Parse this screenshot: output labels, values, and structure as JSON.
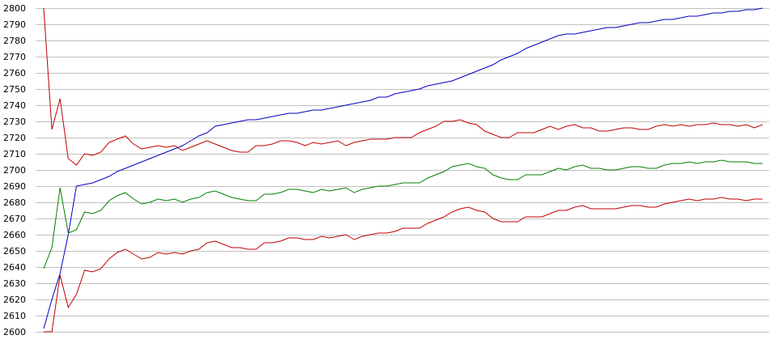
{
  "chart_data": {
    "type": "line",
    "title": "",
    "xlabel": "",
    "ylabel": "",
    "grid": true,
    "legend": "none",
    "xlim": [
      0,
      88
    ],
    "ylim": [
      2600,
      2800
    ],
    "yticks": [
      "2800",
      "2790",
      "2780",
      "2770",
      "2760",
      "2750",
      "2740",
      "2730",
      "2720",
      "2710",
      "2700",
      "2690",
      "2680",
      "2670",
      "2660",
      "2650",
      "2640",
      "2630",
      "2620",
      "2610",
      "2600"
    ],
    "colors": {
      "grid": "#c0c0c0",
      "blue": "#0000c0",
      "upper_red": "#c00000",
      "green": "#008000",
      "lower_red": "#c00000"
    },
    "series": [
      {
        "color": "#0000c0",
        "values": [
          2602,
          2620,
          2636,
          2660,
          2690,
          2691,
          2692,
          2694,
          2696,
          2699,
          2701,
          2703,
          2705,
          2707,
          2709,
          2711,
          2713,
          2715,
          2718,
          2721,
          2723,
          2727,
          2728,
          2729,
          2730,
          2731,
          2731,
          2732,
          2733,
          2734,
          2735,
          2735,
          2736,
          2737,
          2737,
          2738,
          2739,
          2740,
          2741,
          2742,
          2743,
          2745,
          2745,
          2747,
          2748,
          2749,
          2750,
          2752,
          2753,
          2754,
          2755,
          2757,
          2759,
          2761,
          2763,
          2765,
          2768,
          2770,
          2772,
          2775,
          2777,
          2779,
          2781,
          2783,
          2784,
          2784,
          2785,
          2786,
          2787,
          2788,
          2788,
          2789,
          2790,
          2791,
          2791,
          2792,
          2793,
          2793,
          2794,
          2795,
          2795,
          2796,
          2797,
          2797,
          2798,
          2798,
          2799,
          2799,
          2800
        ]
      },
      {
        "color": "#c00000",
        "values": [
          2800,
          2725,
          2744,
          2707,
          2703,
          2710,
          2709,
          2711,
          2717,
          2719,
          2721,
          2716,
          2713,
          2714,
          2715,
          2714,
          2715,
          2712,
          2714,
          2716,
          2718,
          2716,
          2714,
          2712,
          2711,
          2711,
          2715,
          2715,
          2716,
          2718,
          2718,
          2717,
          2715,
          2717,
          2716,
          2717,
          2718,
          2715,
          2717,
          2718,
          2719,
          2719,
          2719,
          2720,
          2720,
          2720,
          2723,
          2725,
          2727,
          2730,
          2730,
          2731,
          2729,
          2728,
          2724,
          2722,
          2720,
          2720,
          2723,
          2723,
          2723,
          2725,
          2727,
          2725,
          2727,
          2728,
          2726,
          2726,
          2724,
          2724,
          2725,
          2726,
          2726,
          2725,
          2725,
          2727,
          2728,
          2727,
          2728,
          2727,
          2728,
          2728,
          2729,
          2728,
          2728,
          2727,
          2728,
          2726,
          2728
        ]
      },
      {
        "color": "#008000",
        "values": [
          2639,
          2652,
          2689,
          2661,
          2663,
          2674,
          2673,
          2675,
          2681,
          2684,
          2686,
          2682,
          2679,
          2680,
          2682,
          2681,
          2682,
          2680,
          2682,
          2683,
          2686,
          2687,
          2685,
          2683,
          2682,
          2681,
          2681,
          2685,
          2685,
          2686,
          2688,
          2688,
          2687,
          2686,
          2688,
          2687,
          2688,
          2689,
          2686,
          2688,
          2689,
          2690,
          2690,
          2691,
          2692,
          2692,
          2692,
          2695,
          2697,
          2699,
          2702,
          2703,
          2704,
          2702,
          2701,
          2697,
          2695,
          2694,
          2694,
          2697,
          2697,
          2697,
          2699,
          2701,
          2700,
          2702,
          2703,
          2701,
          2701,
          2700,
          2700,
          2701,
          2702,
          2702,
          2701,
          2701,
          2703,
          2704,
          2704,
          2705,
          2704,
          2705,
          2705,
          2706,
          2705,
          2705,
          2705,
          2704,
          2704
        ]
      },
      {
        "color": "#c00000",
        "values": [
          2600,
          2600,
          2635,
          2615,
          2623,
          2638,
          2637,
          2639,
          2645,
          2649,
          2651,
          2648,
          2645,
          2646,
          2649,
          2648,
          2649,
          2648,
          2650,
          2651,
          2655,
          2656,
          2654,
          2652,
          2652,
          2651,
          2651,
          2655,
          2655,
          2656,
          2658,
          2658,
          2657,
          2657,
          2659,
          2658,
          2659,
          2660,
          2657,
          2659,
          2660,
          2661,
          2661,
          2662,
          2664,
          2664,
          2664,
          2667,
          2669,
          2671,
          2674,
          2676,
          2677,
          2675,
          2674,
          2670,
          2668,
          2668,
          2668,
          2671,
          2671,
          2671,
          2673,
          2675,
          2675,
          2677,
          2678,
          2676,
          2676,
          2676,
          2676,
          2677,
          2678,
          2678,
          2677,
          2677,
          2679,
          2680,
          2681,
          2682,
          2681,
          2682,
          2682,
          2683,
          2682,
          2682,
          2681,
          2682,
          2682
        ]
      }
    ]
  }
}
